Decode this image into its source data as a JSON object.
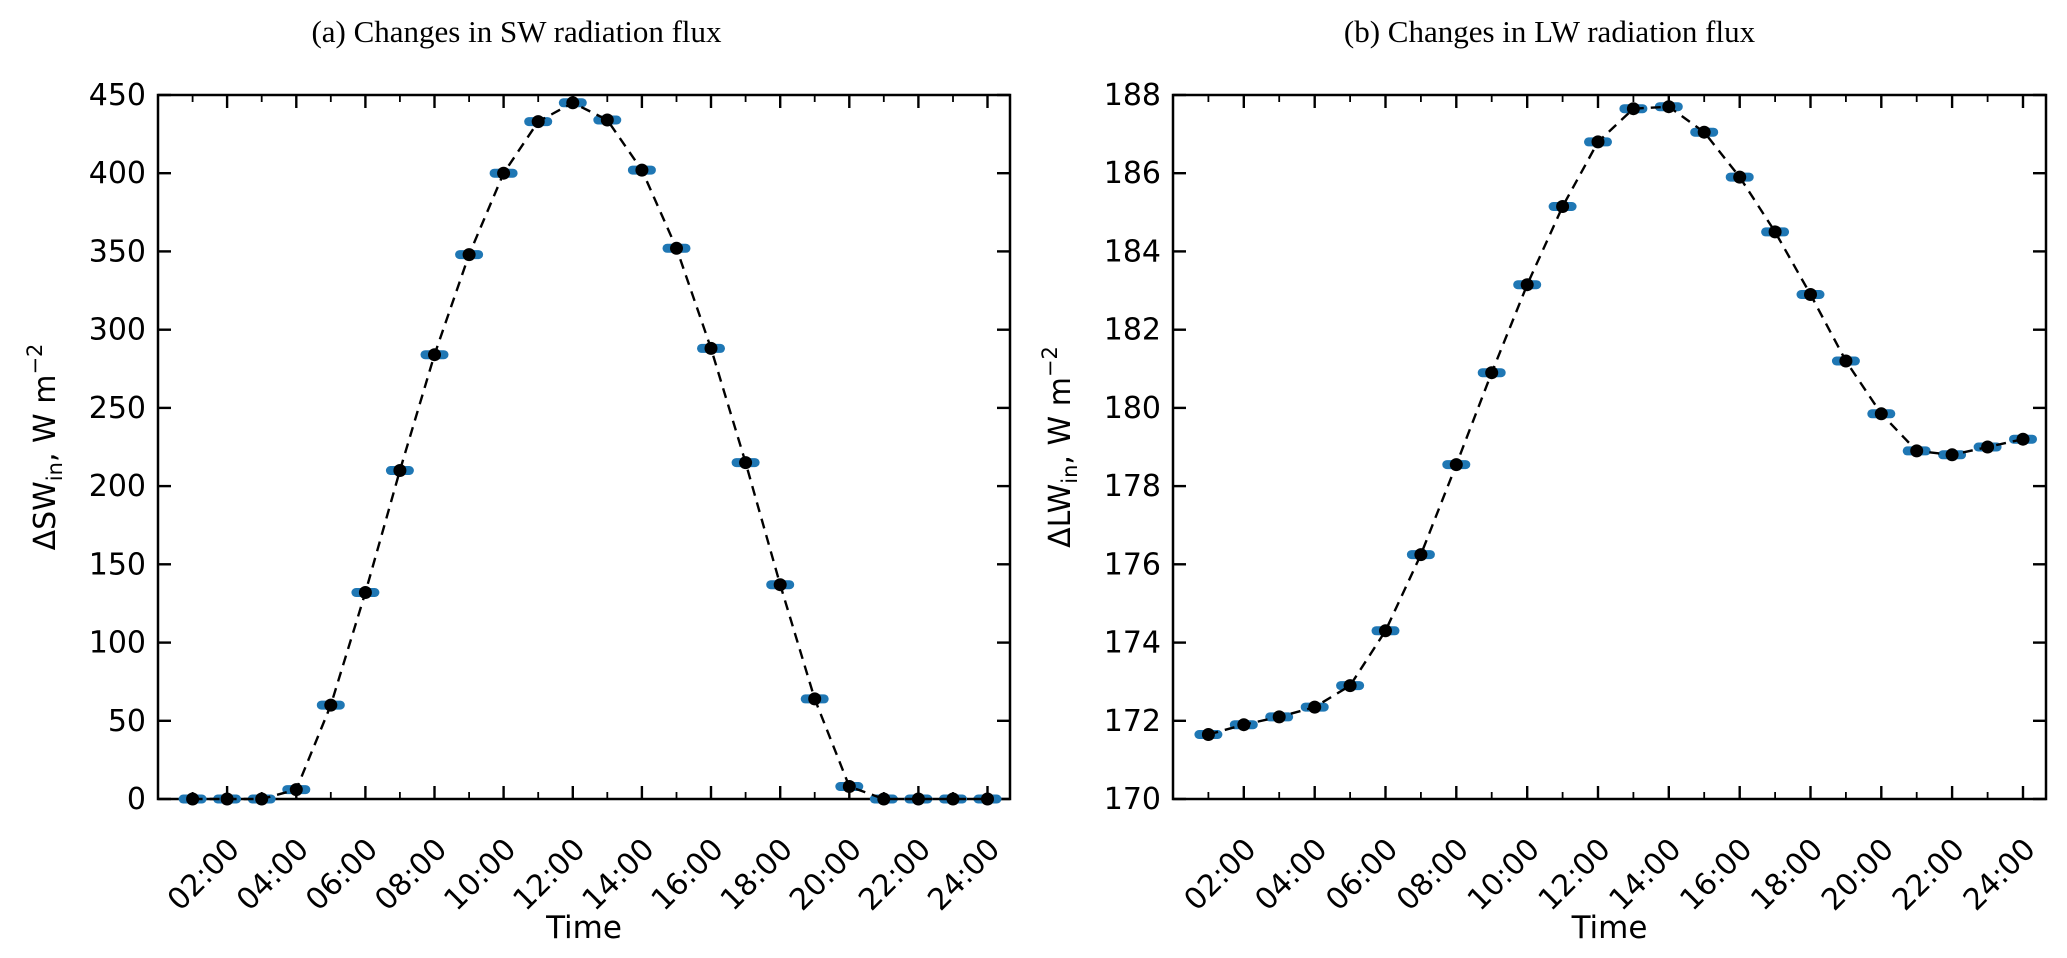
{
  "figure": {
    "background": "#ffffff"
  },
  "chart_data": [
    {
      "type": "scatter",
      "title": "(a) Changes in SW radiation flux",
      "xlabel": "Time",
      "ylabel": {
        "main": "ΔSW",
        "sub": "in",
        "unit": ", W m",
        "sup": "−2"
      },
      "x_hours": [
        1,
        2,
        3,
        4,
        5,
        6,
        7,
        8,
        9,
        10,
        11,
        12,
        13,
        14,
        15,
        16,
        17,
        18,
        19,
        20,
        21,
        22,
        23,
        24
      ],
      "x_tick_labels": [
        "02:00",
        "04:00",
        "06:00",
        "08:00",
        "10:00",
        "12:00",
        "14:00",
        "16:00",
        "18:00",
        "20:00",
        "22:00",
        "24:00"
      ],
      "values": [
        0,
        0,
        0,
        6,
        60,
        132,
        210,
        284,
        348,
        400,
        433,
        445,
        434,
        402,
        352,
        288,
        215,
        137,
        64,
        8,
        0,
        0,
        0,
        0
      ],
      "xlim": [
        0,
        24.65
      ],
      "ylim": [
        0,
        450
      ],
      "yticks": [
        0,
        50,
        100,
        150,
        200,
        250,
        300,
        350,
        400,
        450
      ],
      "grid": false,
      "legend": false,
      "line_style": "dashed",
      "marker_style": "black dot with horizontal blue error bar",
      "colors": {
        "line": "#000000",
        "marker": "#000000",
        "error_bar": "#1f77b4",
        "axis": "#000000"
      }
    },
    {
      "type": "scatter",
      "title": "(b) Changes in LW radiation flux",
      "xlabel": "Time",
      "ylabel": {
        "main": "ΔLW",
        "sub": "in",
        "unit": ", W m",
        "sup": "−2"
      },
      "x_hours": [
        1,
        2,
        3,
        4,
        5,
        6,
        7,
        8,
        9,
        10,
        11,
        12,
        13,
        14,
        15,
        16,
        17,
        18,
        19,
        20,
        21,
        22,
        23,
        24
      ],
      "x_tick_labels": [
        "02:00",
        "04:00",
        "06:00",
        "08:00",
        "10:00",
        "12:00",
        "14:00",
        "16:00",
        "18:00",
        "20:00",
        "22:00",
        "24:00"
      ],
      "values": [
        171.65,
        171.9,
        172.1,
        172.35,
        172.9,
        174.3,
        176.25,
        178.55,
        180.9,
        183.15,
        185.15,
        186.8,
        187.65,
        187.7,
        187.05,
        185.9,
        184.5,
        182.9,
        181.2,
        179.85,
        178.9,
        178.8,
        179.0,
        179.2
      ],
      "xlim": [
        0,
        24.65
      ],
      "ylim": [
        170,
        188
      ],
      "yticks": [
        170,
        172,
        174,
        176,
        178,
        180,
        182,
        184,
        186,
        188
      ],
      "grid": false,
      "legend": false,
      "line_style": "dashed",
      "marker_style": "black dot with horizontal blue error bar",
      "colors": {
        "line": "#000000",
        "marker": "#000000",
        "error_bar": "#1f77b4",
        "axis": "#000000"
      }
    }
  ]
}
